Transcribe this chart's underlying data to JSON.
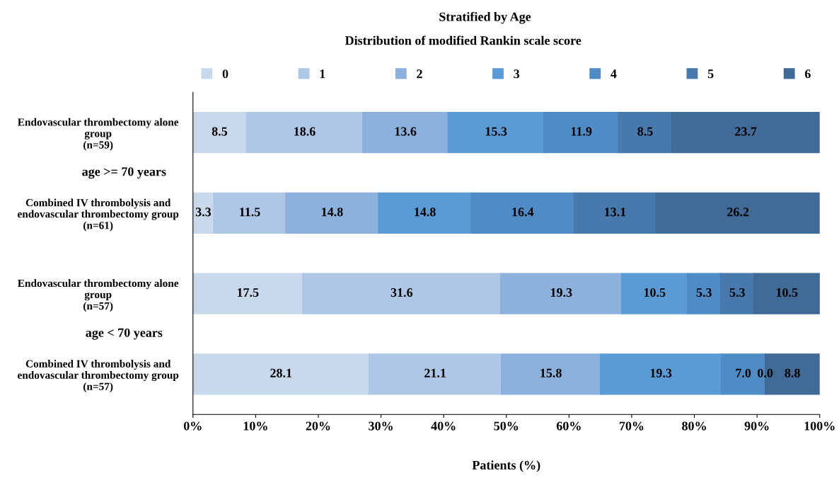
{
  "chart_data": {
    "type": "bar",
    "orientation": "horizontal",
    "stacked": true,
    "title": "Stratified by Age",
    "subtitle": "Distribution of modified Rankin scale score",
    "xlabel": "Patients (%)",
    "categories": [
      "Endovascular thrombectomy alone\ngroup\n(n=59)",
      "Combined IV thrombolysis and\nendovascular thrombectomy group\n(n=61)",
      "Endovascular thrombectomy alone\ngroup\n(n=57)",
      "Combined IV thrombolysis and\nendovascular thrombectomy group\n(n=57)"
    ],
    "series": [
      {
        "name": "0",
        "color": "#c9d9ec",
        "values": [
          8.5,
          3.3,
          17.5,
          28.1
        ],
        "value_labels": [
          "8.5",
          "3.3",
          "17.5",
          "28.1"
        ]
      },
      {
        "name": "1",
        "color": "#aec7e6",
        "values": [
          18.6,
          11.5,
          31.6,
          21.1
        ],
        "value_labels": [
          "18.6",
          "11.5",
          "31.6",
          "21.1"
        ]
      },
      {
        "name": "2",
        "color": "#8db1dd",
        "values": [
          13.6,
          14.8,
          19.3,
          15.8
        ],
        "value_labels": [
          "13.6",
          "14.8",
          "19.3",
          "15.8"
        ]
      },
      {
        "name": "3",
        "color": "#5b9bd5",
        "values": [
          15.3,
          14.8,
          10.5,
          19.3
        ],
        "value_labels": [
          "15.3",
          "14.8",
          "10.5",
          "19.3"
        ]
      },
      {
        "name": "4",
        "color": "#4f8cc6",
        "values": [
          11.9,
          16.4,
          5.3,
          7.0
        ],
        "value_labels": [
          "11.9",
          "16.4",
          "5.3",
          "7.0"
        ]
      },
      {
        "name": "5",
        "color": "#4779ad",
        "values": [
          8.5,
          13.1,
          5.3,
          0.0
        ],
        "value_labels": [
          "8.5",
          "13.1",
          "5.3",
          "0.0"
        ]
      },
      {
        "name": "6",
        "color": "#3f6b96",
        "values": [
          23.7,
          26.2,
          10.5,
          8.8
        ],
        "value_labels": [
          "23.7",
          "26.2",
          "10.5",
          "8.8"
        ]
      }
    ],
    "annotations": [
      "age >= 70 years",
      "age < 70 years"
    ],
    "xlim": [
      0,
      100
    ],
    "xticks": [
      {
        "value": 0,
        "label": "0%"
      },
      {
        "value": 10,
        "label": "10%"
      },
      {
        "value": 20,
        "label": "20%"
      },
      {
        "value": 30,
        "label": "30%"
      },
      {
        "value": 40,
        "label": "40%"
      },
      {
        "value": 50,
        "label": "50%"
      },
      {
        "value": 60,
        "label": "60%"
      },
      {
        "value": 70,
        "label": "70%"
      },
      {
        "value": 80,
        "label": "80%"
      },
      {
        "value": 90,
        "label": "90%"
      },
      {
        "value": 100,
        "label": "100%"
      }
    ],
    "legend": "top",
    "grid": false
  }
}
